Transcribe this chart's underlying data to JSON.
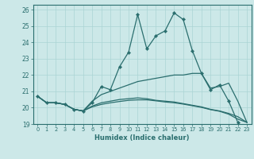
{
  "xlabel": "Humidex (Indice chaleur)",
  "background_color": "#cce8e8",
  "line_color": "#2a6e6e",
  "grid_color": "#aad4d4",
  "x_ticks": [
    0,
    1,
    2,
    3,
    4,
    5,
    6,
    7,
    8,
    9,
    10,
    11,
    12,
    13,
    14,
    15,
    16,
    17,
    18,
    19,
    20,
    21,
    22,
    23
  ],
  "ylim": [
    19.0,
    26.3
  ],
  "xlim": [
    -0.5,
    23.5
  ],
  "yticks": [
    19,
    20,
    21,
    22,
    23,
    24,
    25,
    26
  ],
  "series": [
    {
      "y": [
        20.7,
        20.3,
        20.3,
        20.2,
        19.9,
        19.8,
        20.3,
        21.3,
        21.1,
        22.5,
        23.4,
        25.7,
        23.6,
        24.4,
        24.7,
        25.8,
        25.4,
        23.5,
        22.1,
        21.1,
        21.4,
        20.4,
        19.1,
        null
      ],
      "marker": true
    },
    {
      "y": [
        20.7,
        20.3,
        20.3,
        20.2,
        19.9,
        19.8,
        20.4,
        20.8,
        21.0,
        21.2,
        21.4,
        21.6,
        21.7,
        21.8,
        21.9,
        22.0,
        22.0,
        22.1,
        22.1,
        21.2,
        21.3,
        21.5,
        20.4,
        19.1
      ],
      "marker": false
    },
    {
      "y": [
        20.7,
        20.3,
        20.3,
        20.2,
        19.9,
        19.8,
        20.1,
        20.3,
        20.4,
        20.5,
        20.55,
        20.6,
        20.55,
        20.45,
        20.4,
        20.35,
        20.25,
        20.15,
        20.05,
        19.9,
        19.8,
        19.65,
        19.45,
        19.1
      ],
      "marker": false
    },
    {
      "y": [
        20.7,
        20.3,
        20.3,
        20.2,
        19.9,
        19.8,
        20.05,
        20.2,
        20.3,
        20.38,
        20.45,
        20.48,
        20.48,
        20.42,
        20.35,
        20.3,
        20.22,
        20.12,
        20.02,
        19.88,
        19.78,
        19.6,
        19.3,
        19.1
      ],
      "marker": false
    }
  ]
}
